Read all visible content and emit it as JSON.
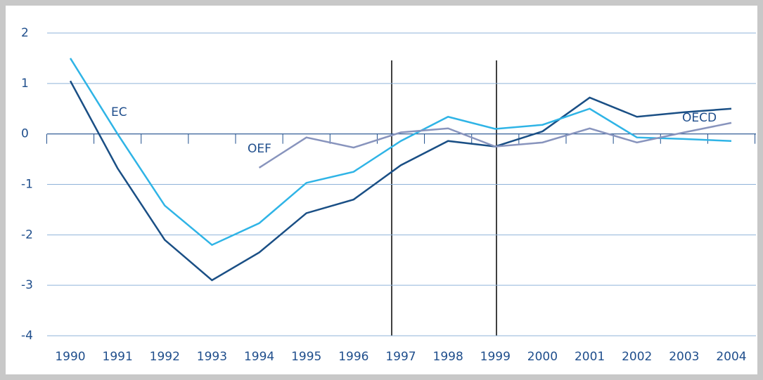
{
  "chart_data": {
    "type": "line",
    "categories": [
      "1990",
      "1991",
      "1992",
      "1993",
      "1994",
      "1995",
      "1996",
      "1997",
      "1998",
      "1999",
      "2000",
      "2001",
      "2002",
      "2003",
      "2004"
    ],
    "series": [
      {
        "name": "OECD",
        "color": "#1a4f85",
        "values": [
          1.05,
          -0.68,
          -2.1,
          -2.9,
          -2.35,
          -1.57,
          -1.3,
          -0.62,
          -0.14,
          -0.25,
          0.05,
          0.72,
          0.34,
          0.43,
          0.5
        ]
      },
      {
        "name": "EC",
        "color": "#2fb4e6",
        "values": [
          1.5,
          0,
          -1.42,
          -2.2,
          -1.77,
          -0.97,
          -0.75,
          -0.14,
          0.34,
          0.1,
          0.18,
          0.5,
          -0.07,
          -0.1,
          -0.14
        ]
      },
      {
        "name": "OEF",
        "color": "#8894bd",
        "values": [
          null,
          null,
          null,
          null,
          -0.67,
          -0.07,
          -0.27,
          0.03,
          0.11,
          -0.25,
          -0.17,
          0.11,
          -0.17,
          0.03,
          0.22
        ]
      }
    ],
    "ylim": [
      -4,
      2
    ],
    "yticks": [
      -4,
      -3,
      -2,
      -1,
      0,
      1,
      2
    ],
    "grid": true
  }
}
